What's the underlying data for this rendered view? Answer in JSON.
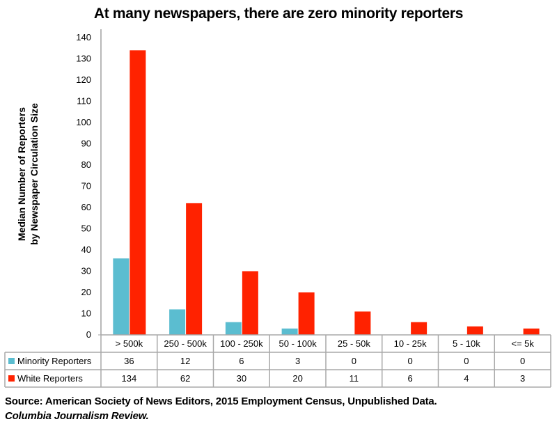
{
  "chart_data": {
    "type": "bar",
    "title": "At many newspapers, there are zero minority reporters",
    "xlabel": "",
    "ylabel": [
      "Median Number of Reporters",
      "by Newspaper Circulation Size"
    ],
    "ylim": [
      0,
      140
    ],
    "yticks": [
      0,
      10,
      20,
      30,
      40,
      50,
      60,
      70,
      80,
      90,
      100,
      110,
      120,
      130,
      140
    ],
    "grid": false,
    "legend": "data-table-bottom",
    "categories": [
      "> 500k",
      "250 - 500k",
      "100 - 250k",
      "50 - 100k",
      "25 - 50k",
      "10 - 25k",
      "5 - 10k",
      "<= 5k"
    ],
    "series": [
      {
        "name": "Minority Reporters",
        "color": "#5BBDD0",
        "values": [
          36,
          12,
          6,
          3,
          0,
          0,
          0,
          0
        ]
      },
      {
        "name": "White Reporters",
        "color": "#FF2200",
        "values": [
          134,
          62,
          30,
          20,
          11,
          6,
          4,
          3
        ]
      }
    ]
  },
  "source": {
    "line1": "Source: American Society of News Editors, 2015 Employment Census, Unpublished Data.",
    "line2": "Columbia Journalism Review."
  }
}
